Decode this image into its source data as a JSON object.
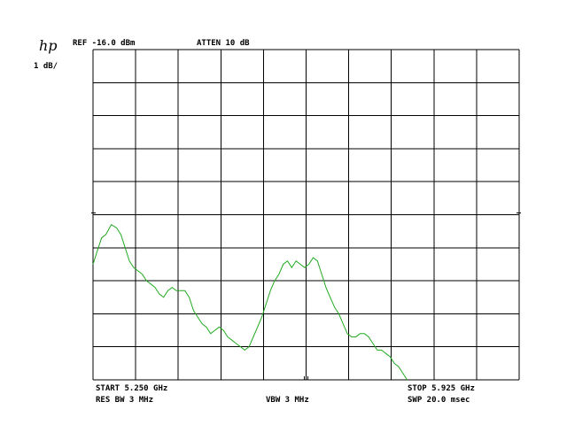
{
  "header": {
    "logo": "hp",
    "scale": "1 dB/",
    "ref_level": "REF -16.0 dBm",
    "attenuation": "ATTEN 10 dB"
  },
  "footer": {
    "start": "START 5.250 GHz",
    "stop": "STOP 5.925 GHz",
    "res_bw": "RES BW 3 MHz",
    "vbw": "VBW 3 MHz",
    "sweep": "SWP 20.0 msec"
  },
  "colors": {
    "trace": "#22aa22",
    "grid": "#000000",
    "background": "#ffffff"
  },
  "chart_data": {
    "type": "line",
    "title": "",
    "xlabel": "",
    "ylabel": "",
    "x_unit": "GHz",
    "y_unit": "dBm",
    "xlim": [
      5.25,
      5.925
    ],
    "ylim": [
      -26.0,
      -16.0
    ],
    "grid": true,
    "grid_divisions": {
      "x": 10,
      "y": 10
    },
    "series": [
      {
        "values": [
          [
            5.25,
            -22.5
          ],
          [
            5.2568,
            -22.1
          ],
          [
            5.2636,
            -21.7
          ],
          [
            5.2703,
            -21.6
          ],
          [
            5.2789,
            -21.3
          ],
          [
            5.2873,
            -21.4
          ],
          [
            5.2941,
            -21.6
          ],
          [
            5.3009,
            -22.0
          ],
          [
            5.3076,
            -22.4
          ],
          [
            5.3144,
            -22.6
          ],
          [
            5.3212,
            -22.7
          ],
          [
            5.3279,
            -22.8
          ],
          [
            5.3347,
            -23.0
          ],
          [
            5.3415,
            -23.1
          ],
          [
            5.3482,
            -23.2
          ],
          [
            5.355,
            -23.4
          ],
          [
            5.3618,
            -23.5
          ],
          [
            5.3685,
            -23.3
          ],
          [
            5.3753,
            -23.2
          ],
          [
            5.3821,
            -23.3
          ],
          [
            5.3888,
            -23.3
          ],
          [
            5.3956,
            -23.3
          ],
          [
            5.4024,
            -23.5
          ],
          [
            5.4092,
            -23.9
          ],
          [
            5.4159,
            -24.1
          ],
          [
            5.4227,
            -24.3
          ],
          [
            5.4295,
            -24.4
          ],
          [
            5.4362,
            -24.6
          ],
          [
            5.443,
            -24.5
          ],
          [
            5.4498,
            -24.4
          ],
          [
            5.4565,
            -24.5
          ],
          [
            5.4633,
            -24.7
          ],
          [
            5.4701,
            -24.8
          ],
          [
            5.4768,
            -24.9
          ],
          [
            5.4836,
            -25.0
          ],
          [
            5.4904,
            -25.1
          ],
          [
            5.4971,
            -25.0
          ],
          [
            5.5039,
            -24.7
          ],
          [
            5.5107,
            -24.4
          ],
          [
            5.5174,
            -24.1
          ],
          [
            5.5242,
            -23.7
          ],
          [
            5.531,
            -23.3
          ],
          [
            5.5377,
            -23.0
          ],
          [
            5.5445,
            -22.8
          ],
          [
            5.5513,
            -22.5
          ],
          [
            5.5581,
            -22.4
          ],
          [
            5.5648,
            -22.6
          ],
          [
            5.5716,
            -22.4
          ],
          [
            5.5784,
            -22.5
          ],
          [
            5.5851,
            -22.6
          ],
          [
            5.5919,
            -22.5
          ],
          [
            5.5987,
            -22.3
          ],
          [
            5.6054,
            -22.4
          ],
          [
            5.6122,
            -22.8
          ],
          [
            5.619,
            -23.2
          ],
          [
            5.6257,
            -23.5
          ],
          [
            5.6325,
            -23.8
          ],
          [
            5.6393,
            -24.0
          ],
          [
            5.646,
            -24.3
          ],
          [
            5.6528,
            -24.6
          ],
          [
            5.6596,
            -24.7
          ],
          [
            5.6663,
            -24.7
          ],
          [
            5.6731,
            -24.6
          ],
          [
            5.6799,
            -24.6
          ],
          [
            5.6866,
            -24.7
          ],
          [
            5.6934,
            -24.9
          ],
          [
            5.7002,
            -25.1
          ],
          [
            5.707,
            -25.1
          ],
          [
            5.7137,
            -25.2
          ],
          [
            5.7205,
            -25.3
          ],
          [
            5.7273,
            -25.5
          ],
          [
            5.734,
            -25.6
          ],
          [
            5.7408,
            -25.8
          ],
          [
            5.7476,
            -26.0
          ]
        ]
      }
    ]
  }
}
